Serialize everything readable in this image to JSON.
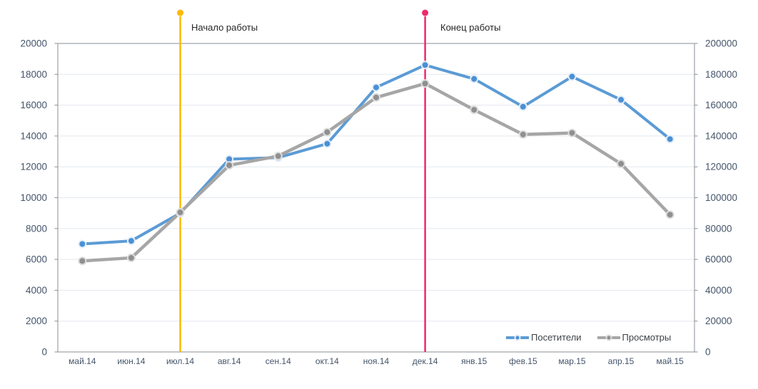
{
  "chart_data": {
    "type": "line",
    "title": "",
    "categories": [
      "май.14",
      "июн.14",
      "июл.14",
      "авг.14",
      "сен.14",
      "окт.14",
      "ноя.14",
      "дек.14",
      "янв.15",
      "фев.15",
      "мар.15",
      "апр.15",
      "май.15"
    ],
    "series": [
      {
        "name": "Посетители",
        "axis": "left",
        "color": "#5B9BD5",
        "marker_fill": "#4A90D5",
        "marker_ring": "#E3EDF9",
        "values": [
          7000,
          7200,
          9000,
          12500,
          12600,
          13500,
          17150,
          18600,
          17700,
          15900,
          17850,
          16350,
          13800
        ]
      },
      {
        "name": "Просмотры",
        "axis": "right",
        "color": "#A6A6A6",
        "marker_fill": "#8F8F8F",
        "marker_ring": "#DCDCDC",
        "values": [
          59000,
          61000,
          90500,
          121000,
          127000,
          142500,
          165000,
          174000,
          157000,
          141000,
          142000,
          122000,
          89000
        ]
      }
    ],
    "left_axis": {
      "min": 0,
      "max": 20000,
      "step": 2000,
      "tick_labels": [
        "0",
        "2000",
        "4000",
        "6000",
        "8000",
        "10000",
        "12000",
        "14000",
        "16000",
        "18000",
        "20000"
      ]
    },
    "right_axis": {
      "min": 0,
      "max": 200000,
      "step": 20000,
      "tick_labels": [
        "0",
        "20000",
        "40000",
        "60000",
        "80000",
        "100000",
        "120000",
        "140000",
        "160000",
        "180000",
        "200000"
      ]
    },
    "grid": true,
    "legend_position": "inside-bottom-right",
    "annotations": [
      {
        "label": "Начало работы",
        "category": "июл.14",
        "color": "#FFB900"
      },
      {
        "label": "Конец работы",
        "category": "дек.14",
        "color": "#EE2A6E"
      }
    ]
  }
}
